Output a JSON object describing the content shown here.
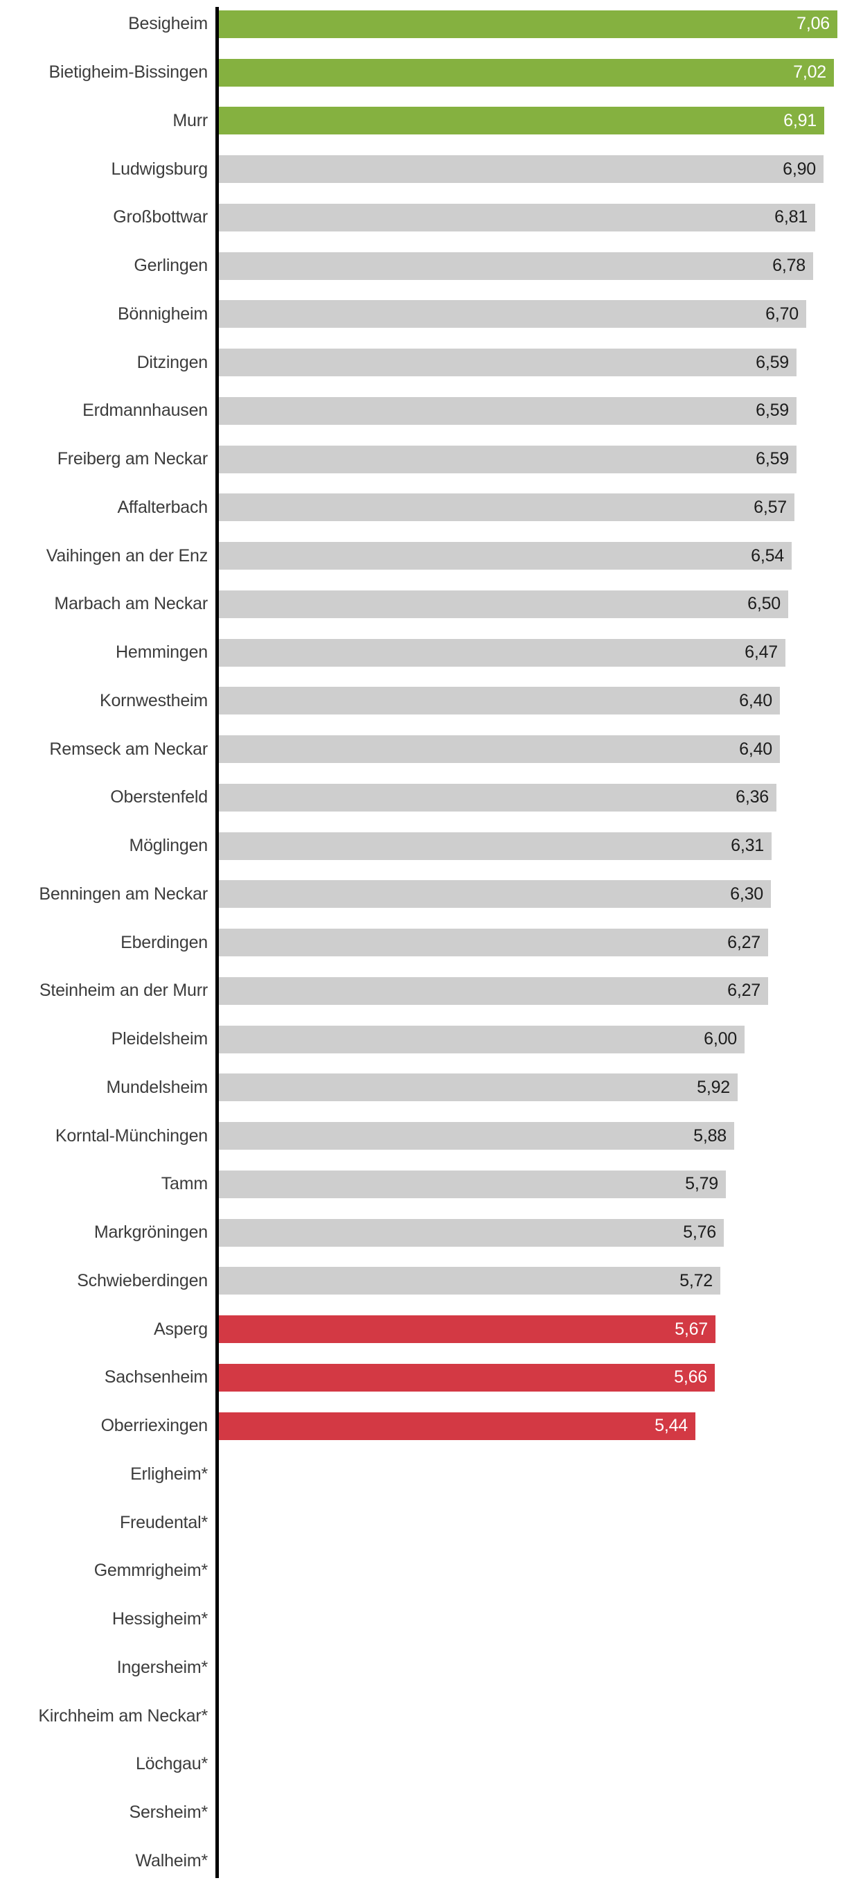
{
  "chart_data": {
    "type": "bar",
    "orientation": "horizontal",
    "title": "",
    "xlabel": "",
    "ylabel": "",
    "xlim": [
      0,
      7.15
    ],
    "grid": false,
    "legend": false,
    "decimal_separator": ",",
    "palette": {
      "green": "#85b140",
      "gray": "#cecece",
      "red": "#d33944",
      "axis": "#000000",
      "label_text": "#3c3c3c",
      "value_text_dark": "#1c1c1c",
      "value_text_light": "#ffffff"
    },
    "rows": [
      {
        "label": "Besigheim",
        "value": 7.06,
        "value_label": "7,06",
        "color": "green"
      },
      {
        "label": "Bietigheim-Bissingen",
        "value": 7.02,
        "value_label": "7,02",
        "color": "green"
      },
      {
        "label": "Murr",
        "value": 6.91,
        "value_label": "6,91",
        "color": "green"
      },
      {
        "label": "Ludwigsburg",
        "value": 6.9,
        "value_label": "6,90",
        "color": "gray"
      },
      {
        "label": "Großbottwar",
        "value": 6.81,
        "value_label": "6,81",
        "color": "gray"
      },
      {
        "label": "Gerlingen",
        "value": 6.78,
        "value_label": "6,78",
        "color": "gray"
      },
      {
        "label": "Bönnigheim",
        "value": 6.7,
        "value_label": "6,70",
        "color": "gray"
      },
      {
        "label": "Ditzingen",
        "value": 6.59,
        "value_label": "6,59",
        "color": "gray"
      },
      {
        "label": "Erdmannhausen",
        "value": 6.59,
        "value_label": "6,59",
        "color": "gray"
      },
      {
        "label": "Freiberg am Neckar",
        "value": 6.59,
        "value_label": "6,59",
        "color": "gray"
      },
      {
        "label": "Affalterbach",
        "value": 6.57,
        "value_label": "6,57",
        "color": "gray"
      },
      {
        "label": "Vaihingen an der Enz",
        "value": 6.54,
        "value_label": "6,54",
        "color": "gray"
      },
      {
        "label": "Marbach am Neckar",
        "value": 6.5,
        "value_label": "6,50",
        "color": "gray"
      },
      {
        "label": "Hemmingen",
        "value": 6.47,
        "value_label": "6,47",
        "color": "gray"
      },
      {
        "label": "Kornwestheim",
        "value": 6.4,
        "value_label": "6,40",
        "color": "gray"
      },
      {
        "label": "Remseck am Neckar",
        "value": 6.4,
        "value_label": "6,40",
        "color": "gray"
      },
      {
        "label": "Oberstenfeld",
        "value": 6.36,
        "value_label": "6,36",
        "color": "gray"
      },
      {
        "label": "Möglingen",
        "value": 6.31,
        "value_label": "6,31",
        "color": "gray"
      },
      {
        "label": "Benningen am Neckar",
        "value": 6.3,
        "value_label": "6,30",
        "color": "gray"
      },
      {
        "label": "Eberdingen",
        "value": 6.27,
        "value_label": "6,27",
        "color": "gray"
      },
      {
        "label": "Steinheim an der Murr",
        "value": 6.27,
        "value_label": "6,27",
        "color": "gray"
      },
      {
        "label": "Pleidelsheim",
        "value": 6.0,
        "value_label": "6,00",
        "color": "gray"
      },
      {
        "label": "Mundelsheim",
        "value": 5.92,
        "value_label": "5,92",
        "color": "gray"
      },
      {
        "label": "Korntal-Münchingen",
        "value": 5.88,
        "value_label": "5,88",
        "color": "gray"
      },
      {
        "label": "Tamm",
        "value": 5.79,
        "value_label": "5,79",
        "color": "gray"
      },
      {
        "label": "Markgröningen",
        "value": 5.76,
        "value_label": "5,76",
        "color": "gray"
      },
      {
        "label": "Schwieberdingen",
        "value": 5.72,
        "value_label": "5,72",
        "color": "gray"
      },
      {
        "label": "Asperg",
        "value": 5.67,
        "value_label": "5,67",
        "color": "red"
      },
      {
        "label": "Sachsenheim",
        "value": 5.66,
        "value_label": "5,66",
        "color": "red"
      },
      {
        "label": "Oberriexingen",
        "value": 5.44,
        "value_label": "5,44",
        "color": "red"
      },
      {
        "label": "Erligheim*",
        "value": null,
        "value_label": null,
        "color": null
      },
      {
        "label": "Freudental*",
        "value": null,
        "value_label": null,
        "color": null
      },
      {
        "label": "Gemmrigheim*",
        "value": null,
        "value_label": null,
        "color": null
      },
      {
        "label": "Hessigheim*",
        "value": null,
        "value_label": null,
        "color": null
      },
      {
        "label": "Ingersheim*",
        "value": null,
        "value_label": null,
        "color": null
      },
      {
        "label": "Kirchheim am Neckar*",
        "value": null,
        "value_label": null,
        "color": null
      },
      {
        "label": "Löchgau*",
        "value": null,
        "value_label": null,
        "color": null
      },
      {
        "label": "Sersheim*",
        "value": null,
        "value_label": null,
        "color": null
      },
      {
        "label": "Walheim*",
        "value": null,
        "value_label": null,
        "color": null
      }
    ]
  }
}
